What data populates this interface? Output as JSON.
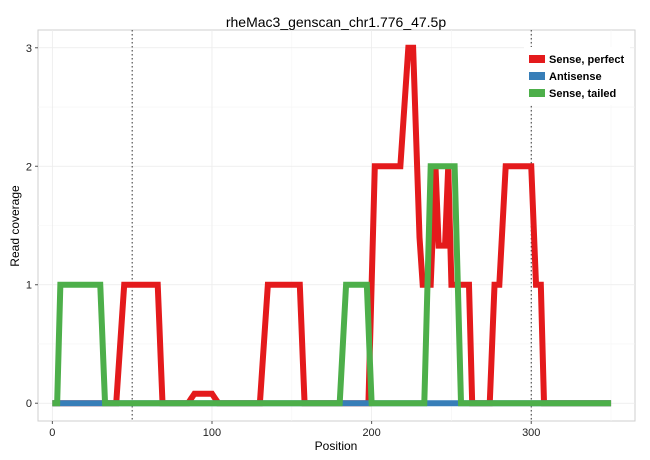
{
  "chart_data": {
    "type": "line",
    "title": "rheMac3_genscan_chr1.776_47.5p",
    "xlabel": "Position",
    "ylabel": "Read coverage",
    "xlim": [
      -9,
      365
    ],
    "ylim": [
      -0.15,
      3.15
    ],
    "x_ticks": [
      0,
      100,
      200,
      300
    ],
    "y_ticks": [
      0,
      1,
      2,
      3
    ],
    "grid": true,
    "legend_position": "top-right",
    "vlines": [
      50,
      300
    ],
    "series": [
      {
        "name": "Sense, perfect",
        "color": "#E41A1C",
        "x": [
          0,
          40,
          41,
          42,
          43,
          44,
          45,
          66,
          67,
          68,
          69,
          85,
          86,
          87,
          88,
          89,
          90,
          100,
          101,
          102,
          103,
          104,
          105,
          130,
          131,
          132,
          133,
          134,
          135,
          155,
          156,
          157,
          158,
          198,
          199,
          200,
          201,
          202,
          203,
          218,
          219,
          220,
          221,
          222,
          223,
          226,
          227,
          228,
          229,
          230,
          232,
          235,
          237,
          238,
          239,
          240,
          241,
          242,
          246,
          247,
          248,
          249,
          250,
          252,
          255,
          261,
          262,
          263,
          264,
          265,
          266,
          267,
          268,
          269,
          270,
          271,
          272,
          274,
          275,
          276,
          277,
          278,
          279,
          280,
          281,
          282,
          283,
          284,
          285,
          286,
          287,
          300,
          301,
          302,
          303,
          304,
          305,
          306,
          307,
          308,
          309,
          310,
          350
        ],
        "y": [
          0,
          0,
          0.2,
          0.4,
          0.6,
          0.8,
          1,
          1,
          0.67,
          0.33,
          0,
          0,
          0.02,
          0.04,
          0.06,
          0.08,
          0.08,
          0.08,
          0.06,
          0.04,
          0.02,
          0,
          0,
          0,
          0.2,
          0.4,
          0.6,
          0.8,
          1,
          1,
          0.67,
          0.33,
          0,
          0,
          0.5,
          1,
          1.5,
          2,
          2,
          2,
          2.2,
          2.4,
          2.6,
          2.8,
          3,
          3,
          2.6,
          2.2,
          1.8,
          1.4,
          1,
          1,
          1,
          1.33,
          1.67,
          2,
          1.67,
          1.33,
          1.33,
          1.67,
          2,
          1.5,
          1,
          1,
          1,
          1,
          0.5,
          0,
          0,
          0,
          0,
          0,
          0,
          0,
          0,
          0,
          0,
          0,
          0.33,
          0.67,
          1,
          1,
          1,
          1,
          1.25,
          1.5,
          1.75,
          2,
          2,
          2,
          2,
          2,
          1.67,
          1.33,
          1,
          1,
          1,
          1,
          0.5,
          0,
          0,
          0,
          0
        ]
      },
      {
        "name": "Antisense",
        "color": "#377EB8",
        "x": [
          0,
          350
        ],
        "y": [
          0,
          0
        ]
      },
      {
        "name": "Sense, tailed",
        "color": "#4DAF4A",
        "x": [
          0,
          1,
          2,
          3,
          4,
          5,
          29,
          30,
          31,
          32,
          33,
          34,
          180,
          181,
          182,
          183,
          184,
          185,
          197,
          198,
          199,
          200,
          201,
          233,
          234,
          235,
          236,
          237,
          238,
          252,
          253,
          254,
          255,
          256,
          350
        ],
        "y": [
          0,
          0,
          0,
          0,
          0.5,
          1,
          1,
          1,
          0.67,
          0.33,
          0,
          0,
          0,
          0.25,
          0.5,
          0.75,
          1,
          1,
          1,
          0.67,
          0.33,
          0,
          0,
          0,
          0.5,
          1,
          1.5,
          2,
          2,
          2,
          1.5,
          1,
          0.5,
          0,
          0
        ]
      }
    ]
  }
}
